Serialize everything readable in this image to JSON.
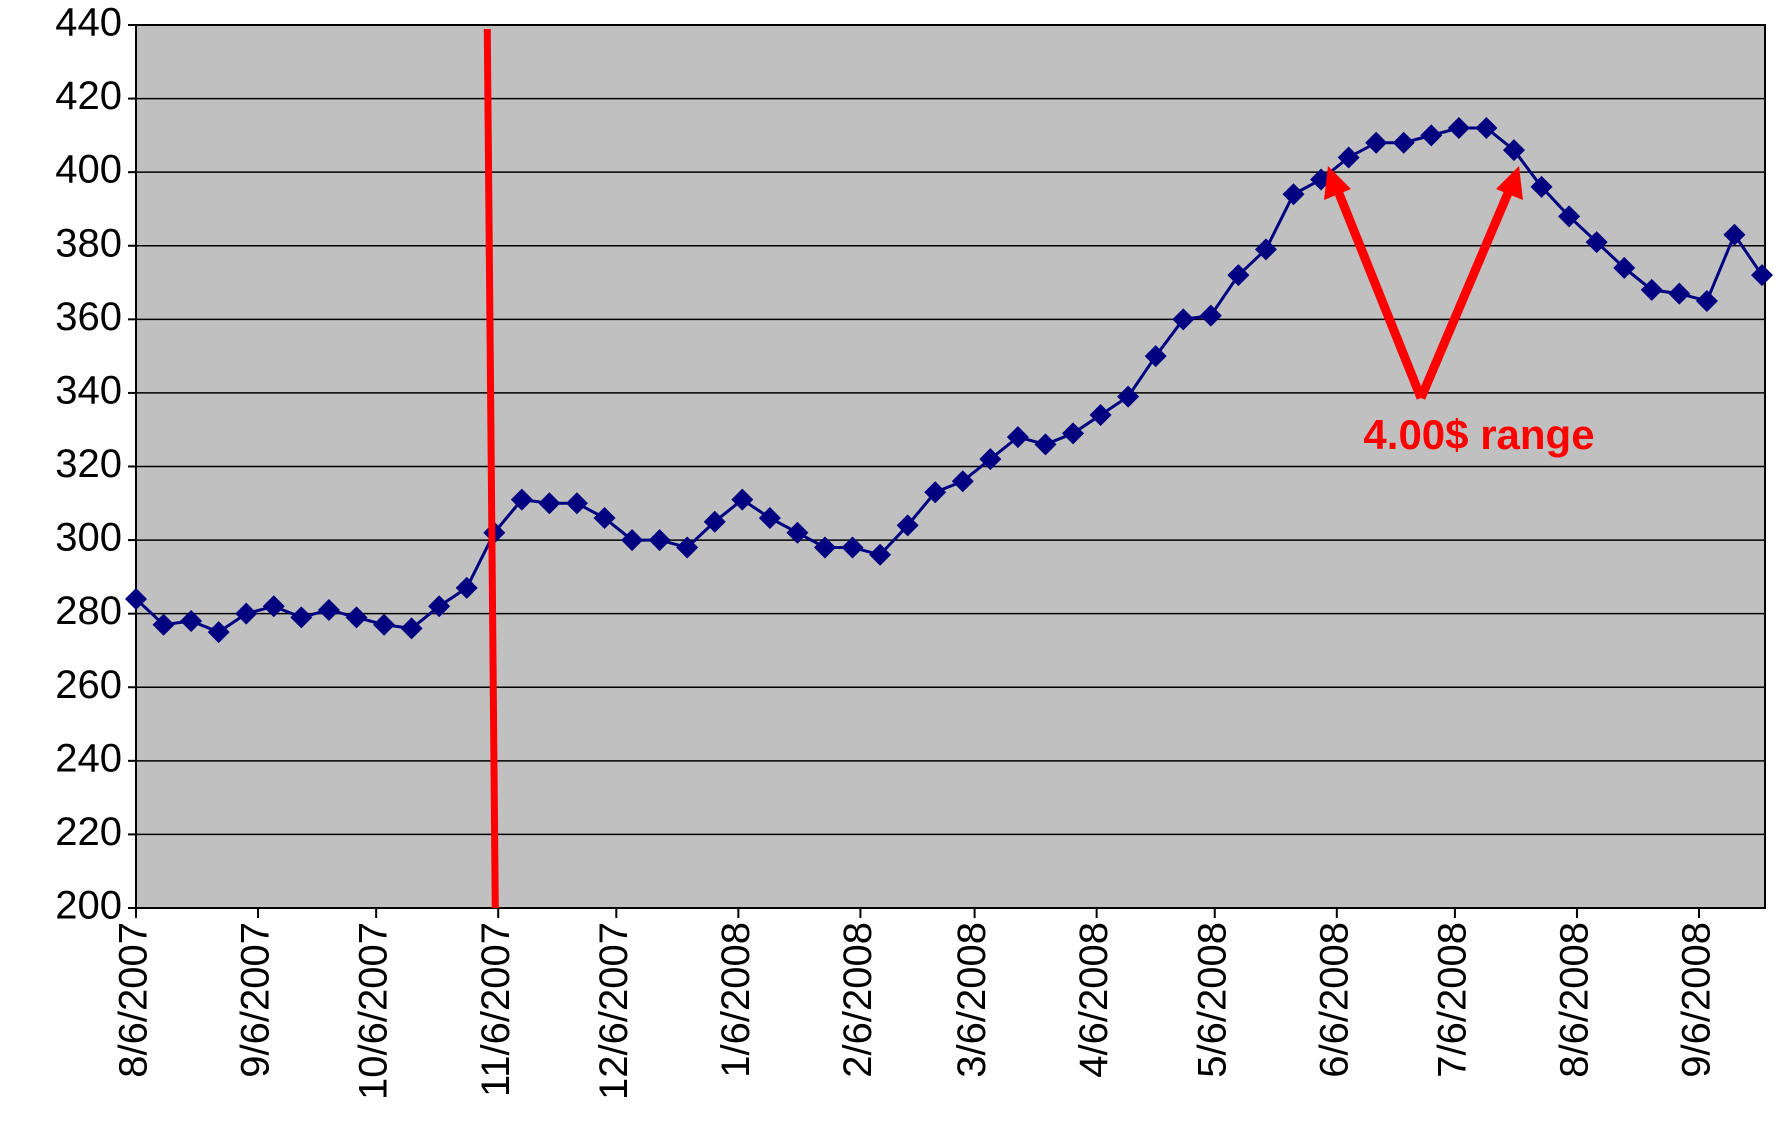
{
  "chart_data": {
    "type": "line",
    "x": [
      "2007-08-06",
      "2007-08-13",
      "2007-08-20",
      "2007-08-27",
      "2007-09-03",
      "2007-09-10",
      "2007-09-17",
      "2007-09-24",
      "2007-10-01",
      "2007-10-08",
      "2007-10-15",
      "2007-10-22",
      "2007-10-29",
      "2007-11-05",
      "2007-11-12",
      "2007-11-19",
      "2007-11-26",
      "2007-12-03",
      "2007-12-10",
      "2007-12-17",
      "2007-12-24",
      "2007-12-31",
      "2008-01-07",
      "2008-01-14",
      "2008-01-21",
      "2008-01-28",
      "2008-02-04",
      "2008-02-11",
      "2008-02-18",
      "2008-02-25",
      "2008-03-03",
      "2008-03-10",
      "2008-03-17",
      "2008-03-24",
      "2008-03-31",
      "2008-04-07",
      "2008-04-14",
      "2008-04-21",
      "2008-04-28",
      "2008-05-05",
      "2008-05-12",
      "2008-05-19",
      "2008-05-26",
      "2008-06-02",
      "2008-06-09",
      "2008-06-16",
      "2008-06-23",
      "2008-06-30",
      "2008-07-07",
      "2008-07-14",
      "2008-07-21",
      "2008-07-28",
      "2008-08-04",
      "2008-08-11",
      "2008-08-18",
      "2008-08-25",
      "2008-09-01",
      "2008-09-08",
      "2008-09-15",
      "2008-09-22"
    ],
    "series": [
      {
        "color": "#000080",
        "values": [
          284,
          277,
          278,
          275,
          280,
          282,
          279,
          281,
          279,
          277,
          276,
          282,
          287,
          302,
          311,
          310,
          310,
          306,
          300,
          300,
          298,
          305,
          311,
          306,
          302,
          298,
          298,
          296,
          304,
          313,
          316,
          322,
          328,
          326,
          329,
          334,
          339,
          350,
          360,
          361,
          372,
          379,
          394,
          398,
          404,
          408,
          408,
          410,
          412,
          412,
          406,
          396,
          388,
          381,
          374,
          368,
          367,
          365,
          383,
          372
        ]
      }
    ],
    "xlim": [
      "2007-08-06",
      "2008-09-22"
    ],
    "xticks": [
      {
        "value": "2007-08-06",
        "label": "8/6/2007"
      },
      {
        "value": "2007-09-06",
        "label": "9/6/2007"
      },
      {
        "value": "2007-10-06",
        "label": "10/6/2007"
      },
      {
        "value": "2007-11-06",
        "label": "11/6/2007"
      },
      {
        "value": "2007-12-06",
        "label": "12/6/2007"
      },
      {
        "value": "2008-01-06",
        "label": "1/6/2008"
      },
      {
        "value": "2008-02-06",
        "label": "2/6/2008"
      },
      {
        "value": "2008-03-06",
        "label": "3/6/2008"
      },
      {
        "value": "2008-04-06",
        "label": "4/6/2008"
      },
      {
        "value": "2008-05-06",
        "label": "5/6/2008"
      },
      {
        "value": "2008-06-06",
        "label": "6/6/2008"
      },
      {
        "value": "2008-07-06",
        "label": "7/6/2008"
      },
      {
        "value": "2008-08-06",
        "label": "8/6/2008"
      },
      {
        "value": "2008-09-06",
        "label": "9/6/2008"
      }
    ],
    "ylim": [
      200,
      440
    ],
    "yticks": [
      200,
      220,
      240,
      260,
      280,
      300,
      320,
      340,
      360,
      380,
      400,
      420,
      440
    ],
    "grid": true,
    "plot_background": "#c0c0c0",
    "reference_line": {
      "x": "2007-11-05",
      "color": "#ff0000"
    },
    "annotation": "4.00$ range"
  }
}
